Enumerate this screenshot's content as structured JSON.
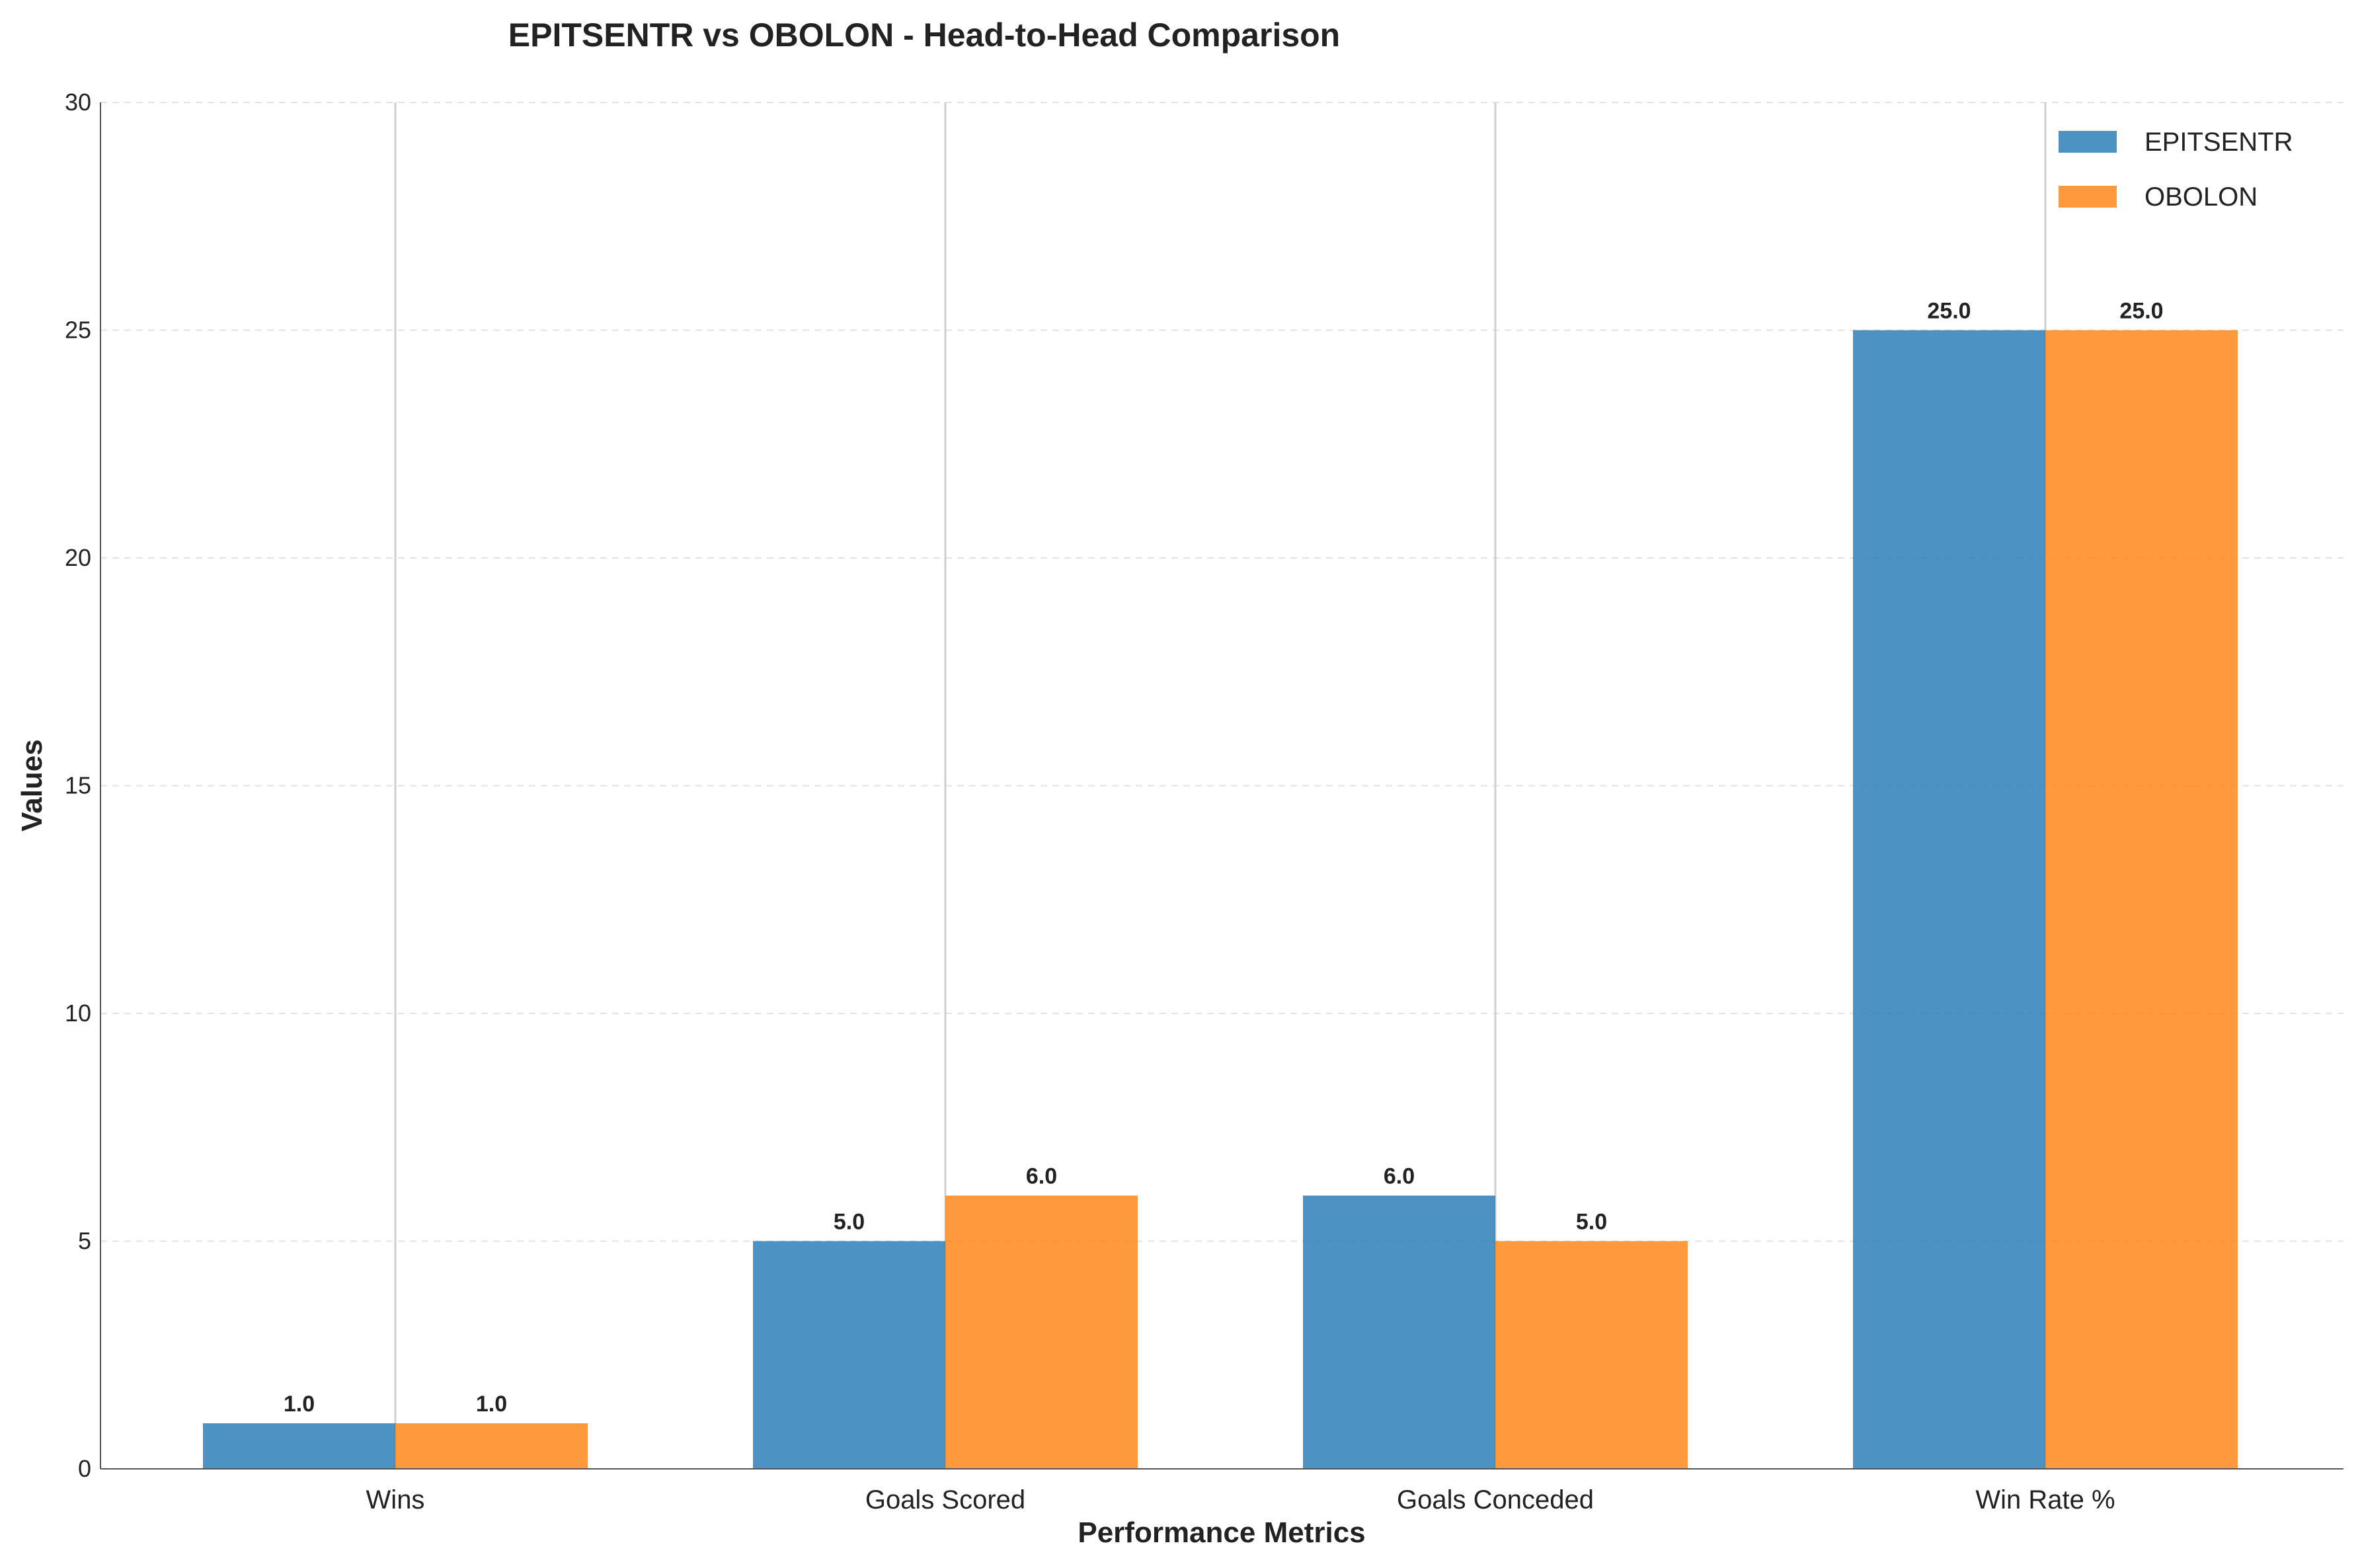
{
  "chart_data": {
    "type": "bar",
    "title": "EPITSENTR vs OBOLON - Head-to-Head Comparison",
    "xlabel": "Performance Metrics",
    "ylabel": "Values",
    "categories": [
      "Wins",
      "Goals Scored",
      "Goals Conceded",
      "Win Rate %"
    ],
    "series": [
      {
        "name": "EPITSENTR",
        "color": "#1f77b4",
        "values": [
          1.0,
          5.0,
          6.0,
          25.0
        ],
        "labels": [
          "1.0",
          "5.0",
          "6.0",
          "25.0"
        ]
      },
      {
        "name": "OBOLON",
        "color": "#ff7f0e",
        "values": [
          1.0,
          6.0,
          5.0,
          25.0
        ],
        "labels": [
          "1.0",
          "6.0",
          "5.0",
          "25.0"
        ]
      }
    ],
    "ylim": [
      0,
      30
    ],
    "yticks": [
      0,
      5,
      10,
      15,
      20,
      25,
      30
    ],
    "ytick_labels": [
      "0",
      "5",
      "10",
      "15",
      "20",
      "25",
      "30"
    ],
    "grid": "y dashed, x vertical lines at category centers",
    "legend_position": "top-right"
  }
}
